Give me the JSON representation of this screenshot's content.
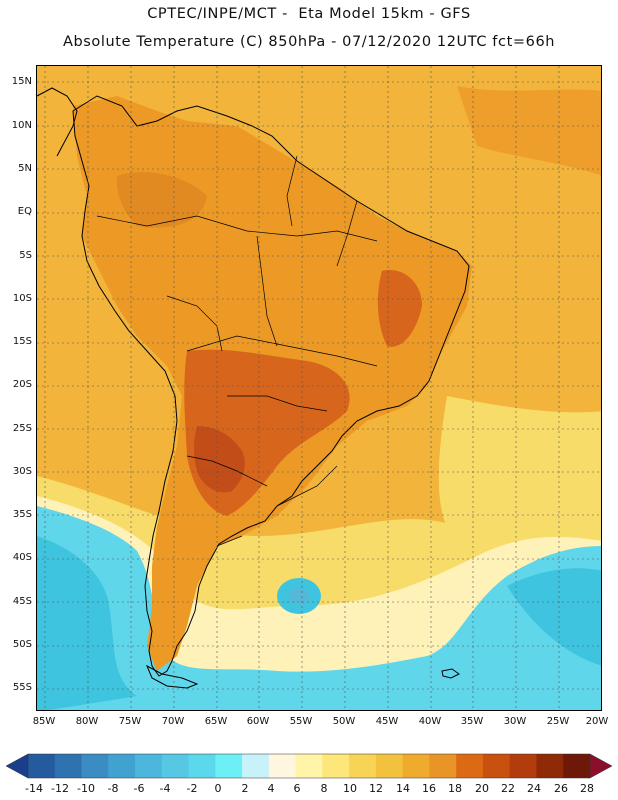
{
  "header": {
    "line1": "CPTEC/INPE/MCT -  Eta Model 15km - GFS",
    "line2": "Absolute Temperature (C) 850hPa - 07/12/2020 12UTC fct=66h"
  },
  "map": {
    "region": "South America",
    "lat_labels": [
      "15N",
      "10N",
      "5N",
      "EQ",
      "5S",
      "10S",
      "15S",
      "20S",
      "25S",
      "30S",
      "35S",
      "40S",
      "45S",
      "50S",
      "55S"
    ],
    "lon_labels": [
      "85W",
      "80W",
      "75W",
      "70W",
      "65W",
      "60W",
      "55W",
      "50W",
      "45W",
      "40W",
      "35W",
      "30W",
      "25W",
      "20W"
    ],
    "colors": {
      "ocean_warm": "#f2b43a",
      "land_warm": "#ec9a25",
      "hot_core": "#d7651c",
      "very_hot": "#c24d18",
      "mild": "#f8dc6a",
      "cool": "#fff2b8",
      "cold": "#5fd6ea",
      "colder": "#3fc4df",
      "coastline": "#000000"
    }
  },
  "colorbar": {
    "labels": [
      "-14",
      "-12",
      "-10",
      "-8",
      "-6",
      "-4",
      "-2",
      "0",
      "2",
      "4",
      "6",
      "8",
      "10",
      "12",
      "14",
      "16",
      "18",
      "20",
      "22",
      "24",
      "26",
      "28"
    ],
    "colors": [
      "#1a3e8c",
      "#245a9e",
      "#2f72b0",
      "#3a8cc2",
      "#42a2cf",
      "#4cb6dc",
      "#56c8e4",
      "#5cd8ec",
      "#6cf0f6",
      "#c8f2fa",
      "#fff6e0",
      "#fff4a8",
      "#fde77a",
      "#f7d456",
      "#f2c23f",
      "#eeab2d",
      "#e89426",
      "#dc6a14",
      "#c9500f",
      "#b23c0c",
      "#8e2a08",
      "#6e1808",
      "#8a0f2a"
    ]
  }
}
